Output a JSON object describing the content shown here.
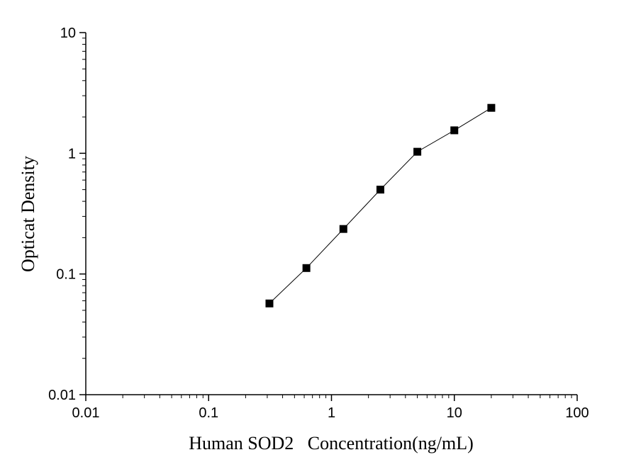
{
  "chart_data": {
    "type": "scatter",
    "xscale": "log",
    "yscale": "log",
    "xlim": [
      0.01,
      100
    ],
    "ylim": [
      0.01,
      10
    ],
    "xlabel": "Human SOD2   Concentration(ng/mL)",
    "ylabel": "Opticat Density",
    "x_ticks": [
      "0.01",
      "0.1",
      "1",
      "10",
      "100"
    ],
    "y_ticks": [
      "0.01",
      "0.1",
      "1",
      "10"
    ],
    "series": [
      {
        "marker": "square",
        "line": "connected",
        "color": "#000000",
        "points": [
          {
            "x": 0.3125,
            "y": 0.057
          },
          {
            "x": 0.625,
            "y": 0.112
          },
          {
            "x": 1.25,
            "y": 0.236
          },
          {
            "x": 2.5,
            "y": 0.5
          },
          {
            "x": 5,
            "y": 1.03
          },
          {
            "x": 10,
            "y": 1.55
          },
          {
            "x": 20,
            "y": 2.38
          }
        ]
      }
    ],
    "grid": false
  }
}
